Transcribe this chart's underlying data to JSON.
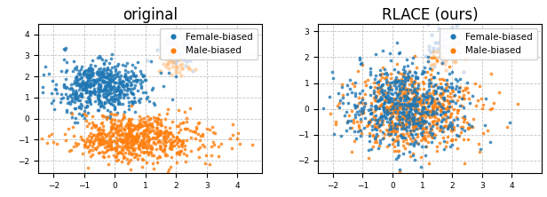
{
  "title_left": "original",
  "title_right": "RLACE (ours)",
  "female_color": "#1f77b4",
  "male_color": "#ff7f0e",
  "female_color_light": "#aec7e8",
  "male_color_light": "#ffbb78",
  "legend_label_female": "Female-biased",
  "legend_label_male": "Male-biased",
  "left_xlim": [
    -2.5,
    4.8
  ],
  "left_ylim": [
    -2.6,
    4.5
  ],
  "right_xlim": [
    -2.5,
    5.0
  ],
  "right_ylim": [
    -2.5,
    3.3
  ],
  "left_xticks": [
    -2,
    -1,
    0,
    1,
    2,
    3,
    4
  ],
  "left_yticks": [
    -2,
    -1,
    0,
    1,
    2,
    3,
    4
  ],
  "right_xticks": [
    -2,
    -1,
    0,
    1,
    2,
    3,
    4
  ],
  "right_yticks": [
    -2,
    -1,
    0,
    1,
    2,
    3
  ],
  "n_female": 600,
  "n_male": 700,
  "seed": 12
}
